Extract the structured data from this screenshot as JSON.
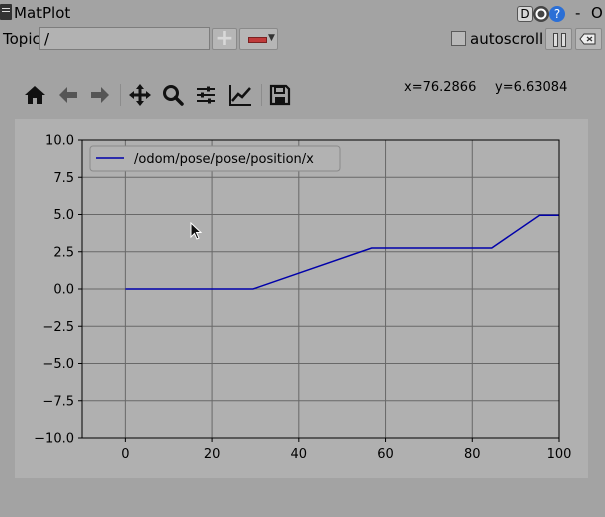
{
  "window": {
    "title": "MatPlot",
    "badge": "D",
    "minimize": "-",
    "close": "O"
  },
  "topic": {
    "label": "Topic",
    "value": "/"
  },
  "autoscroll": {
    "label": "autoscroll",
    "checked": false
  },
  "toolbar": {
    "icons": [
      "home-icon",
      "back-arrow-icon",
      "forward-arrow-icon",
      "pan-icon",
      "zoom-icon",
      "configure-subplots-icon",
      "edit-axes-icon",
      "save-icon"
    ],
    "coord_x": "x=76.2866",
    "coord_y": "y=6.63084"
  },
  "chart_data": {
    "type": "line",
    "title": "",
    "xlabel": "",
    "ylabel": "",
    "xlim": [
      -10,
      100
    ],
    "ylim": [
      -10,
      10
    ],
    "x_ticks": [
      "0",
      "20",
      "40",
      "60",
      "80",
      "100"
    ],
    "y_ticks": [
      "10.0",
      "7.5",
      "5.0",
      "2.5",
      "0.0",
      "−2.5",
      "−5.0",
      "−7.5",
      "−10.0"
    ],
    "grid": true,
    "legend_position": "upper-left",
    "series": [
      {
        "name": "/odom/pose/pose/position/x",
        "color": "#0000aa",
        "x": [
          0,
          29.4,
          56.8,
          84.5,
          95.5,
          100
        ],
        "y": [
          0.0,
          0.0,
          2.75,
          2.75,
          4.95,
          4.95
        ]
      }
    ]
  }
}
